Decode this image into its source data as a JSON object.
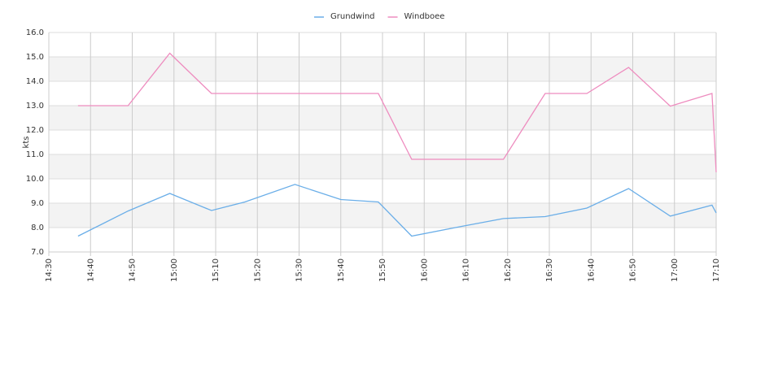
{
  "chart_data": {
    "type": "line",
    "y_label": "kts",
    "x": [
      "14:37",
      "14:49",
      "14:59",
      "15:09",
      "15:17",
      "15:29",
      "15:40",
      "15:49",
      "15:57",
      "16:09",
      "16:19",
      "16:29",
      "16:39",
      "16:49",
      "16:59",
      "17:09",
      "17:10"
    ],
    "series": [
      {
        "name": "Grundwind",
        "color": "#6aaee8",
        "values": [
          7.65,
          8.68,
          9.4,
          8.7,
          9.05,
          9.77,
          9.15,
          9.05,
          7.65,
          8.05,
          8.37,
          8.45,
          8.8,
          9.6,
          8.47,
          8.92,
          8.6
        ]
      },
      {
        "name": "Windboee",
        "color": "#ee8cbf",
        "values": [
          13.0,
          13.0,
          15.15,
          13.5,
          13.5,
          13.5,
          13.5,
          13.5,
          10.8,
          10.8,
          10.8,
          13.5,
          13.5,
          14.57,
          12.98,
          13.5,
          10.27
        ]
      }
    ],
    "xlim": [
      "14:30",
      "17:10"
    ],
    "xticks": [
      "14:30",
      "14:40",
      "14:50",
      "15:00",
      "15:10",
      "15:20",
      "15:30",
      "15:40",
      "15:50",
      "16:00",
      "16:10",
      "16:20",
      "16:30",
      "16:40",
      "16:50",
      "17:00",
      "17:10"
    ],
    "ylim": [
      7,
      16
    ],
    "yticks": [
      {
        "value": 7,
        "label": "7.0"
      },
      {
        "value": 8,
        "label": "8.0"
      },
      {
        "value": 9,
        "label": "9.0"
      },
      {
        "value": 10,
        "label": "10.0"
      },
      {
        "value": 11,
        "label": "11.0"
      },
      {
        "value": 12,
        "label": "12.0"
      },
      {
        "value": 13,
        "label": "13.0"
      },
      {
        "value": 14,
        "label": "14.0"
      },
      {
        "value": 15,
        "label": "15.0"
      },
      {
        "value": 16,
        "label": "16.0"
      }
    ],
    "grid": true,
    "legend": "top"
  }
}
